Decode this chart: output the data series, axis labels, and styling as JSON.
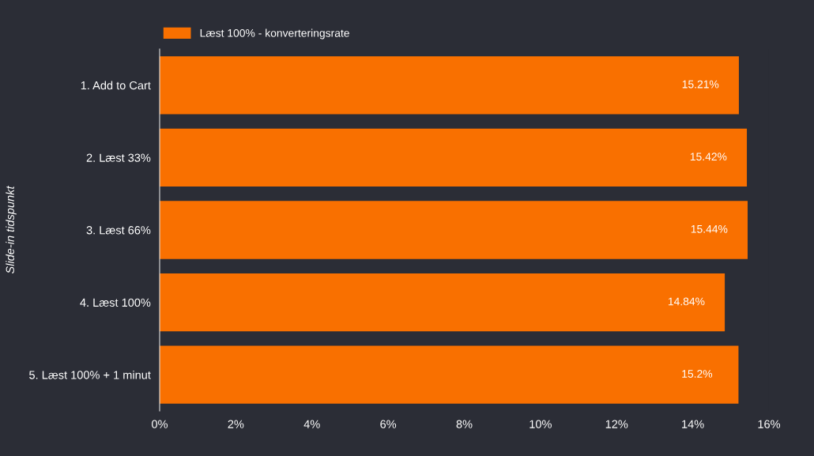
{
  "chart_data": {
    "type": "bar",
    "orientation": "horizontal",
    "ylabel": "Slide-in tidspunkt",
    "categories": [
      "1. Add to Cart",
      "2. Læst 33%",
      "3. Læst 66%",
      "4. Læst 100%",
      "5. Læst 100% + 1 minut"
    ],
    "series": [
      {
        "name": "Læst 100% - konverteringsrate",
        "color": "#f97000",
        "values": [
          15.21,
          15.42,
          15.44,
          14.84,
          15.2
        ],
        "value_labels": [
          "15.21%",
          "15.42%",
          "15.44%",
          "14.84%",
          "15.2%"
        ]
      }
    ],
    "xlim": [
      0,
      16
    ],
    "xticks": [
      {
        "value": 0,
        "label": "0%"
      },
      {
        "value": 2,
        "label": "2%"
      },
      {
        "value": 4,
        "label": "4%"
      },
      {
        "value": 6,
        "label": "6%"
      },
      {
        "value": 8,
        "label": "8%"
      },
      {
        "value": 10,
        "label": "10%"
      },
      {
        "value": 12,
        "label": "12%"
      },
      {
        "value": 14,
        "label": "14%"
      },
      {
        "value": 16,
        "label": "16%"
      }
    ],
    "grid": false,
    "legend": "top left"
  }
}
